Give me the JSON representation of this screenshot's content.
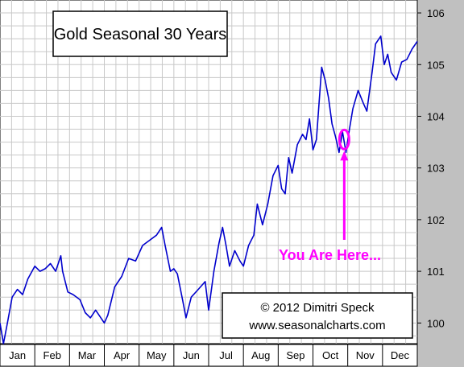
{
  "chart_data": {
    "type": "line",
    "title": "Gold Seasonal 30 Years",
    "xlabel": "",
    "ylabel": "",
    "ylim": [
      99.6,
      106.25
    ],
    "yticks": [
      100,
      101,
      102,
      103,
      104,
      105,
      106
    ],
    "months": [
      "Jan",
      "Feb",
      "Mar",
      "Apr",
      "May",
      "Jun",
      "Jul",
      "Aug",
      "Sep",
      "Oct",
      "Nov",
      "Dec"
    ],
    "grid": true,
    "series": [
      {
        "color": "#0000cc",
        "points": [
          [
            0.0,
            100.0
          ],
          [
            0.1,
            99.6
          ],
          [
            0.2,
            99.95
          ],
          [
            0.35,
            100.5
          ],
          [
            0.5,
            100.65
          ],
          [
            0.65,
            100.55
          ],
          [
            0.8,
            100.85
          ],
          [
            1.0,
            101.1
          ],
          [
            1.15,
            101.0
          ],
          [
            1.3,
            101.05
          ],
          [
            1.45,
            101.15
          ],
          [
            1.6,
            101.0
          ],
          [
            1.75,
            101.3
          ],
          [
            1.8,
            101.0
          ],
          [
            1.95,
            100.6
          ],
          [
            2.1,
            100.55
          ],
          [
            2.3,
            100.45
          ],
          [
            2.45,
            100.2
          ],
          [
            2.6,
            100.1
          ],
          [
            2.75,
            100.25
          ],
          [
            2.9,
            100.1
          ],
          [
            3.0,
            100.0
          ],
          [
            3.1,
            100.15
          ],
          [
            3.3,
            100.7
          ],
          [
            3.5,
            100.9
          ],
          [
            3.7,
            101.25
          ],
          [
            3.9,
            101.2
          ],
          [
            4.1,
            101.5
          ],
          [
            4.3,
            101.6
          ],
          [
            4.5,
            101.7
          ],
          [
            4.65,
            101.85
          ],
          [
            4.75,
            101.5
          ],
          [
            4.9,
            101.0
          ],
          [
            5.0,
            101.05
          ],
          [
            5.1,
            100.95
          ],
          [
            5.25,
            100.45
          ],
          [
            5.35,
            100.1
          ],
          [
            5.5,
            100.5
          ],
          [
            5.7,
            100.65
          ],
          [
            5.9,
            100.8
          ],
          [
            6.0,
            100.25
          ],
          [
            6.15,
            101.0
          ],
          [
            6.3,
            101.55
          ],
          [
            6.4,
            101.85
          ],
          [
            6.5,
            101.5
          ],
          [
            6.6,
            101.1
          ],
          [
            6.75,
            101.4
          ],
          [
            6.9,
            101.2
          ],
          [
            7.0,
            101.1
          ],
          [
            7.15,
            101.5
          ],
          [
            7.3,
            101.7
          ],
          [
            7.4,
            102.3
          ],
          [
            7.55,
            101.9
          ],
          [
            7.7,
            102.3
          ],
          [
            7.85,
            102.85
          ],
          [
            8.0,
            103.05
          ],
          [
            8.1,
            102.6
          ],
          [
            8.2,
            102.5
          ],
          [
            8.3,
            103.2
          ],
          [
            8.4,
            102.9
          ],
          [
            8.55,
            103.45
          ],
          [
            8.7,
            103.65
          ],
          [
            8.8,
            103.55
          ],
          [
            8.9,
            103.95
          ],
          [
            9.0,
            103.35
          ],
          [
            9.1,
            103.55
          ],
          [
            9.25,
            104.95
          ],
          [
            9.35,
            104.7
          ],
          [
            9.45,
            104.35
          ],
          [
            9.55,
            103.85
          ],
          [
            9.65,
            103.6
          ],
          [
            9.75,
            103.3
          ],
          [
            9.85,
            103.7
          ],
          [
            9.95,
            103.3
          ],
          [
            10.05,
            103.75
          ],
          [
            10.15,
            104.15
          ],
          [
            10.3,
            104.5
          ],
          [
            10.45,
            104.25
          ],
          [
            10.55,
            104.1
          ],
          [
            10.7,
            104.85
          ],
          [
            10.8,
            105.4
          ],
          [
            10.95,
            105.55
          ],
          [
            11.05,
            105.0
          ],
          [
            11.15,
            105.2
          ],
          [
            11.25,
            104.85
          ],
          [
            11.4,
            104.7
          ],
          [
            11.55,
            105.05
          ],
          [
            11.7,
            105.1
          ],
          [
            11.85,
            105.3
          ],
          [
            12.0,
            105.45
          ]
        ]
      }
    ],
    "annotations": {
      "you_are_here": "You Are Here...",
      "marker_x": 9.9,
      "marker_y": 103.55
    },
    "copyright_line1": "© 2012  Dimitri Speck",
    "copyright_line2": "www.seasonalcharts.com"
  }
}
